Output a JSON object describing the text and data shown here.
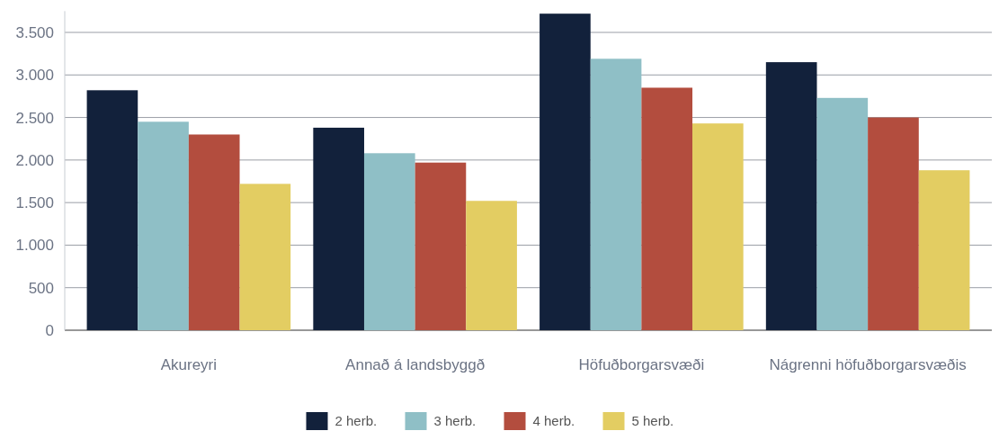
{
  "chart_data": {
    "type": "bar",
    "categories": [
      "Akureyri",
      "Annað á landsbyggð",
      "Höfuðborgarsvæði",
      "Nágrenni höfuðborgarsvæðis"
    ],
    "series": [
      {
        "name": "2 herb.",
        "color": "#12213b",
        "values": [
          2820,
          2380,
          3720,
          3150
        ]
      },
      {
        "name": "3 herb.",
        "color": "#8fbfc6",
        "values": [
          2450,
          2080,
          3190,
          2730
        ]
      },
      {
        "name": "4 herb.",
        "color": "#b34d3e",
        "values": [
          2300,
          1970,
          2850,
          2500
        ]
      },
      {
        "name": "5 herb.",
        "color": "#e3cd62",
        "values": [
          1720,
          1520,
          2430,
          1880
        ]
      }
    ],
    "ylim": [
      0,
      3750
    ],
    "yticks": [
      0,
      500,
      {
        "value": 1000,
        "label": "1.000"
      },
      {
        "value": 1500,
        "label": "1.500"
      },
      {
        "value": 2000,
        "label": "2.000"
      },
      {
        "value": 2500,
        "label": "2.500"
      },
      {
        "value": 3000,
        "label": "3.000"
      },
      {
        "value": 3500,
        "label": "3.500"
      }
    ],
    "grid": "y",
    "legend": "bottom"
  }
}
